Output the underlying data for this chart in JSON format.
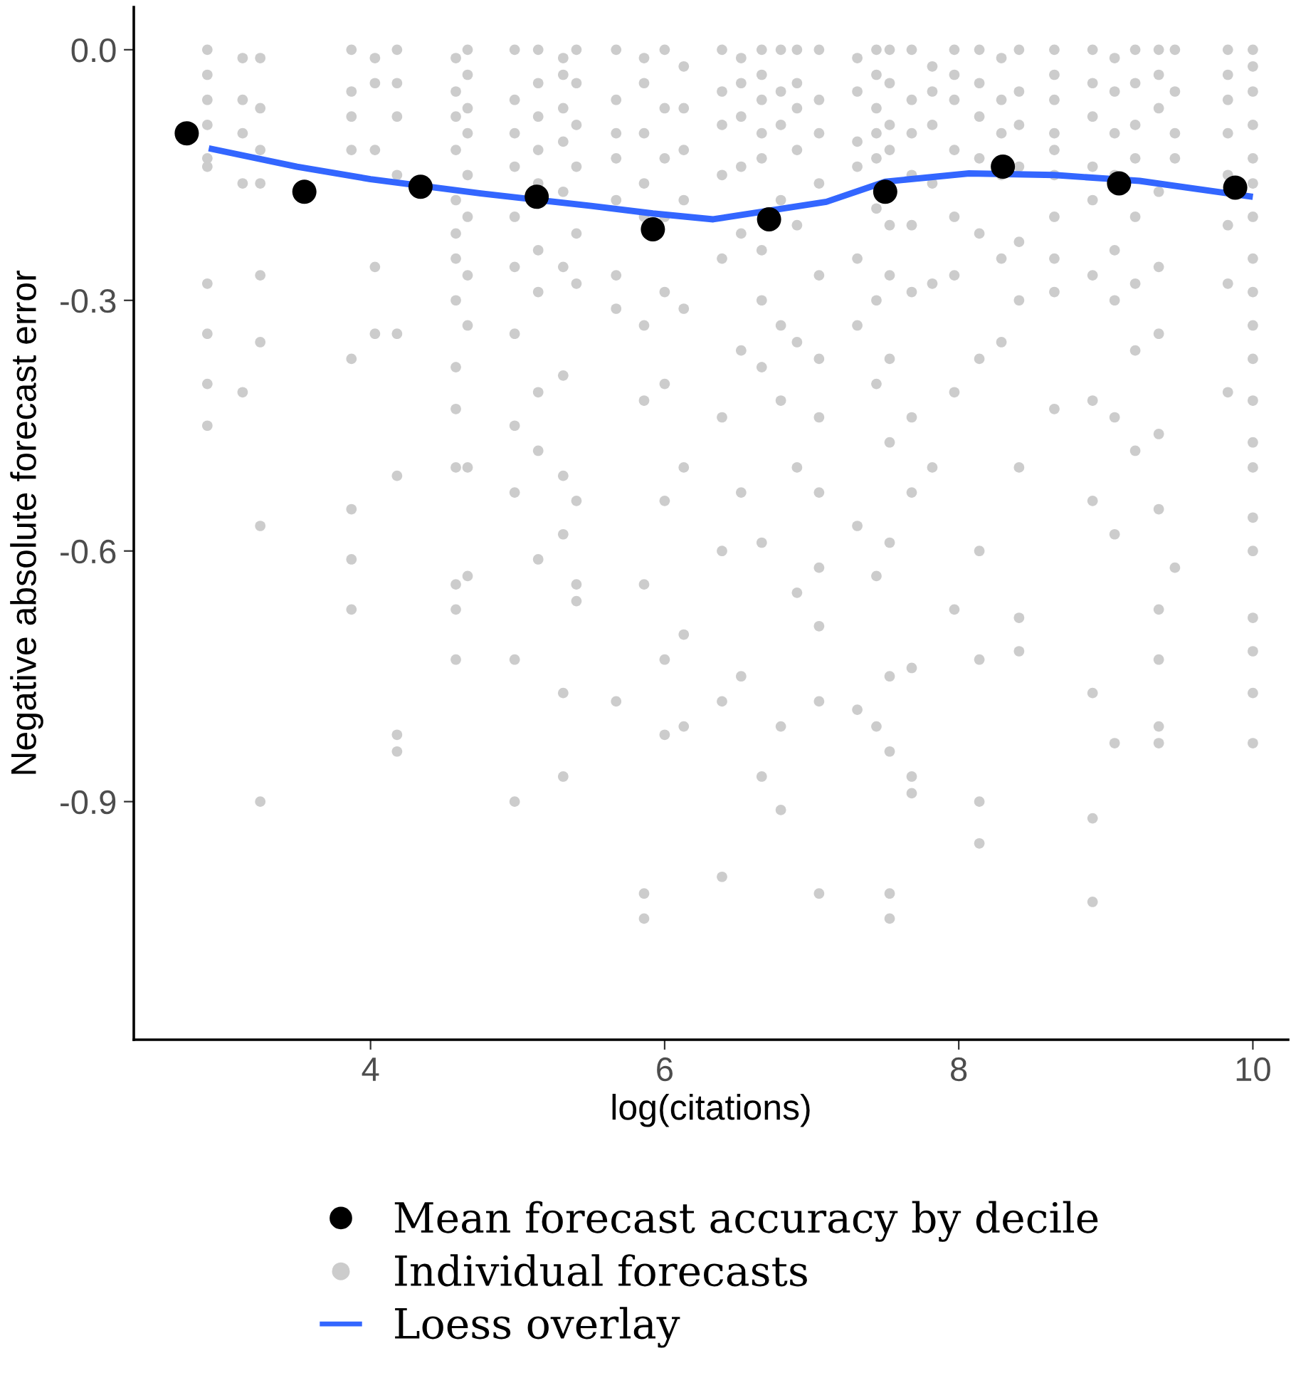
{
  "chart_data": {
    "type": "scatter",
    "xlabel": "log(citations)",
    "ylabel": "Negative absolute forecast error",
    "xlim": [
      2.39,
      10.24
    ],
    "ylim": [
      -1.185,
      0.051
    ],
    "xticks": [
      4,
      6,
      8,
      10
    ],
    "yticks": [
      {
        "value": 0,
        "label": "0.0"
      },
      -0.3,
      -0.6,
      -0.9
    ],
    "grid": false,
    "legend": "bottom",
    "marker": "circle",
    "series": [
      {
        "name": "Mean forecast accuracy by decile",
        "color": "#000000",
        "x": [
          2.75,
          3.55,
          4.34,
          5.13,
          5.92,
          6.71,
          7.5,
          8.3,
          9.09,
          9.88
        ],
        "values": [
          -0.1,
          -0.17,
          -0.164,
          -0.176,
          -0.215,
          -0.203,
          -0.17,
          -0.14,
          -0.16,
          -0.165
        ]
      },
      {
        "name": "Individual forecasts",
        "color": "#cccccc",
        "x": [
          2.89,
          2.89,
          2.89,
          2.89,
          2.89,
          2.89,
          2.89,
          2.89,
          2.89,
          2.89,
          3.13,
          3.13,
          3.13,
          3.13,
          3.13,
          3.25,
          3.25,
          3.25,
          3.25,
          3.25,
          3.25,
          3.25,
          3.25,
          3.87,
          3.87,
          3.87,
          3.87,
          3.87,
          3.87,
          3.87,
          3.87,
          4.03,
          4.03,
          4.03,
          4.03,
          4.03,
          4.18,
          4.18,
          4.18,
          4.18,
          4.18,
          4.18,
          4.18,
          4.18,
          4.58,
          4.58,
          4.58,
          4.58,
          4.58,
          4.58,
          4.58,
          4.58,
          4.58,
          4.58,
          4.58,
          4.58,
          4.58,
          4.58,
          4.66,
          4.66,
          4.66,
          4.66,
          4.66,
          4.66,
          4.66,
          4.66,
          4.66,
          4.66,
          4.98,
          4.98,
          4.98,
          4.98,
          4.98,
          4.98,
          4.98,
          4.98,
          4.98,
          4.98,
          4.98,
          5.14,
          5.14,
          5.14,
          5.14,
          5.14,
          5.14,
          5.14,
          5.14,
          5.14,
          5.14,
          5.31,
          5.31,
          5.31,
          5.31,
          5.31,
          5.31,
          5.31,
          5.31,
          5.31,
          5.31,
          5.31,
          5.4,
          5.4,
          5.4,
          5.4,
          5.4,
          5.4,
          5.4,
          5.4,
          5.4,
          5.67,
          5.67,
          5.67,
          5.67,
          5.67,
          5.67,
          5.67,
          5.67,
          5.86,
          5.86,
          5.86,
          5.86,
          5.86,
          5.86,
          5.86,
          5.86,
          5.86,
          5.86,
          6.0,
          6.0,
          6.0,
          6.0,
          6.0,
          6.0,
          6.0,
          6.0,
          6.0,
          6.13,
          6.13,
          6.13,
          6.13,
          6.13,
          6.13,
          6.13,
          6.13,
          6.39,
          6.39,
          6.39,
          6.39,
          6.39,
          6.39,
          6.39,
          6.39,
          6.39,
          6.52,
          6.52,
          6.52,
          6.52,
          6.52,
          6.52,
          6.52,
          6.52,
          6.66,
          6.66,
          6.66,
          6.66,
          6.66,
          6.66,
          6.66,
          6.66,
          6.66,
          6.66,
          6.79,
          6.79,
          6.79,
          6.79,
          6.79,
          6.79,
          6.79,
          6.79,
          6.9,
          6.9,
          6.9,
          6.9,
          6.9,
          6.9,
          6.9,
          6.9,
          7.05,
          7.05,
          7.05,
          7.05,
          7.05,
          7.05,
          7.05,
          7.05,
          7.05,
          7.05,
          7.05,
          7.05,
          7.31,
          7.31,
          7.31,
          7.31,
          7.31,
          7.31,
          7.31,
          7.31,
          7.44,
          7.44,
          7.44,
          7.44,
          7.44,
          7.44,
          7.44,
          7.44,
          7.44,
          7.44,
          7.53,
          7.53,
          7.53,
          7.53,
          7.53,
          7.53,
          7.53,
          7.53,
          7.53,
          7.53,
          7.53,
          7.53,
          7.53,
          7.68,
          7.68,
          7.68,
          7.68,
          7.68,
          7.68,
          7.68,
          7.68,
          7.68,
          7.68,
          7.68,
          7.82,
          7.82,
          7.82,
          7.82,
          7.82,
          7.82,
          7.97,
          7.97,
          7.97,
          7.97,
          7.97,
          7.97,
          7.97,
          7.97,
          8.14,
          8.14,
          8.14,
          8.14,
          8.14,
          8.14,
          8.14,
          8.14,
          8.14,
          8.14,
          8.29,
          8.29,
          8.29,
          8.29,
          8.29,
          8.29,
          8.41,
          8.41,
          8.41,
          8.41,
          8.41,
          8.41,
          8.41,
          8.41,
          8.41,
          8.65,
          8.65,
          8.65,
          8.65,
          8.65,
          8.65,
          8.65,
          8.65,
          8.65,
          8.65,
          8.91,
          8.91,
          8.91,
          8.91,
          8.91,
          8.91,
          8.91,
          8.91,
          8.91,
          8.91,
          8.91,
          9.06,
          9.06,
          9.06,
          9.06,
          9.06,
          9.06,
          9.06,
          9.06,
          9.06,
          9.2,
          9.2,
          9.2,
          9.2,
          9.2,
          9.2,
          9.2,
          9.2,
          9.36,
          9.36,
          9.36,
          9.36,
          9.36,
          9.36,
          9.36,
          9.36,
          9.36,
          9.36,
          9.36,
          9.36,
          9.47,
          9.47,
          9.47,
          9.47,
          9.47,
          9.83,
          9.83,
          9.83,
          9.83,
          9.83,
          9.83,
          9.83,
          9.83,
          10.0,
          10.0,
          10.0,
          10.0,
          10.0,
          10.0,
          10.0,
          10.0,
          10.0,
          10.0,
          10.0,
          10.0,
          10.0,
          10.0,
          10.0,
          10.0,
          10.0,
          10.0,
          10.0,
          10.0
        ],
        "values": [
          0,
          -0.03,
          -0.06,
          -0.09,
          -0.13,
          -0.14,
          -0.28,
          -0.34,
          -0.4,
          -0.45,
          -0.01,
          -0.06,
          -0.1,
          -0.16,
          -0.41,
          -0.01,
          -0.07,
          -0.12,
          -0.16,
          -0.27,
          -0.35,
          -0.57,
          -0.9,
          0,
          -0.05,
          -0.08,
          -0.12,
          -0.37,
          -0.55,
          -0.61,
          -0.67,
          -0.01,
          -0.04,
          -0.12,
          -0.26,
          -0.34,
          0,
          -0.04,
          -0.08,
          -0.15,
          -0.34,
          -0.51,
          -0.82,
          -0.84,
          -0.01,
          -0.05,
          -0.08,
          -0.12,
          -0.18,
          -0.22,
          -0.25,
          -0.3,
          -0.38,
          -0.43,
          -0.5,
          -0.64,
          -0.67,
          -0.73,
          0,
          -0.03,
          -0.07,
          -0.1,
          -0.15,
          -0.2,
          -0.27,
          -0.33,
          -0.5,
          -0.63,
          0,
          -0.06,
          -0.1,
          -0.14,
          -0.2,
          -0.26,
          -0.34,
          -0.45,
          -0.53,
          -0.73,
          -0.9,
          0,
          -0.04,
          -0.08,
          -0.12,
          -0.16,
          -0.24,
          -0.29,
          -0.41,
          -0.48,
          -0.61,
          -0.01,
          -0.03,
          -0.07,
          -0.11,
          -0.17,
          -0.26,
          -0.39,
          -0.51,
          -0.58,
          -0.77,
          -0.87,
          0,
          -0.04,
          -0.09,
          -0.14,
          -0.22,
          -0.28,
          -0.54,
          -0.64,
          -0.66,
          0,
          -0.06,
          -0.1,
          -0.13,
          -0.18,
          -0.27,
          -0.31,
          -0.78,
          -0.01,
          -0.04,
          -0.1,
          -0.16,
          -0.2,
          -0.33,
          -0.42,
          -0.64,
          -1.01,
          -1.04,
          0,
          -0.07,
          -0.13,
          -0.2,
          -0.29,
          -0.4,
          -0.54,
          -0.73,
          -0.82,
          -0.02,
          -0.07,
          -0.12,
          -0.18,
          -0.31,
          -0.5,
          -0.7,
          -0.81,
          0,
          -0.05,
          -0.09,
          -0.15,
          -0.25,
          -0.44,
          -0.6,
          -0.78,
          -0.99,
          -0.01,
          -0.04,
          -0.08,
          -0.14,
          -0.22,
          -0.36,
          -0.53,
          -0.75,
          0,
          -0.03,
          -0.06,
          -0.1,
          -0.13,
          -0.24,
          -0.3,
          -0.38,
          -0.59,
          -0.87,
          0,
          -0.05,
          -0.09,
          -0.18,
          -0.33,
          -0.42,
          -0.81,
          -0.91,
          0,
          -0.04,
          -0.07,
          -0.12,
          -0.21,
          -0.35,
          -0.5,
          -0.65,
          0,
          -0.06,
          -0.1,
          -0.16,
          -0.27,
          -0.37,
          -0.44,
          -0.53,
          -0.62,
          -0.69,
          -0.78,
          -1.01,
          -0.01,
          -0.05,
          -0.11,
          -0.14,
          -0.25,
          -0.33,
          -0.57,
          -0.79,
          0,
          -0.03,
          -0.07,
          -0.1,
          -0.13,
          -0.19,
          -0.3,
          -0.4,
          -0.63,
          -0.81,
          0,
          -0.04,
          -0.09,
          -0.12,
          -0.21,
          -0.27,
          -0.37,
          -0.47,
          -0.59,
          -0.75,
          -0.84,
          -1.01,
          -1.04,
          0,
          -0.06,
          -0.1,
          -0.15,
          -0.21,
          -0.29,
          -0.44,
          -0.53,
          -0.74,
          -0.87,
          -0.89,
          -0.02,
          -0.05,
          -0.09,
          -0.16,
          -0.28,
          -0.5,
          0,
          -0.03,
          -0.06,
          -0.12,
          -0.2,
          -0.27,
          -0.41,
          -0.67,
          0,
          -0.04,
          -0.08,
          -0.13,
          -0.22,
          -0.37,
          -0.6,
          -0.73,
          -0.9,
          -0.95,
          -0.01,
          -0.06,
          -0.1,
          -0.15,
          -0.25,
          -0.35,
          0,
          -0.05,
          -0.09,
          -0.14,
          -0.23,
          -0.3,
          -0.5,
          -0.68,
          -0.72,
          0,
          -0.03,
          -0.06,
          -0.1,
          -0.12,
          -0.15,
          -0.2,
          -0.25,
          -0.29,
          -0.43,
          0,
          -0.04,
          -0.08,
          -0.14,
          -0.18,
          -0.27,
          -0.42,
          -0.54,
          -0.77,
          -0.92,
          -1.02,
          -0.01,
          -0.05,
          -0.1,
          -0.15,
          -0.24,
          -0.3,
          -0.44,
          -0.58,
          -0.83,
          0,
          -0.04,
          -0.09,
          -0.13,
          -0.2,
          -0.28,
          -0.36,
          -0.48,
          0,
          -0.03,
          -0.07,
          -0.17,
          -0.26,
          -0.34,
          -0.46,
          -0.55,
          -0.67,
          -0.73,
          -0.81,
          -0.83,
          0,
          -0.05,
          -0.1,
          -0.13,
          -0.62,
          0,
          -0.03,
          -0.06,
          -0.1,
          -0.15,
          -0.21,
          -0.28,
          -0.41,
          0,
          -0.02,
          -0.05,
          -0.09,
          -0.13,
          -0.16,
          -0.2,
          -0.25,
          -0.29,
          -0.33,
          -0.37,
          -0.42,
          -0.47,
          -0.5,
          -0.56,
          -0.6,
          -0.68,
          -0.72,
          -0.77,
          -0.83
        ]
      },
      {
        "name": "Loess overlay",
        "type": "line",
        "marker": "none",
        "color": "#3366ff",
        "x": [
          2.9,
          3.5,
          4.0,
          4.75,
          5.5,
          5.92,
          6.33,
          7.1,
          7.5,
          8.07,
          8.65,
          9.23,
          10.0
        ],
        "values": [
          -0.118,
          -0.14,
          -0.155,
          -0.172,
          -0.187,
          -0.196,
          -0.203,
          -0.182,
          -0.158,
          -0.148,
          -0.15,
          -0.157,
          -0.176
        ]
      }
    ]
  }
}
